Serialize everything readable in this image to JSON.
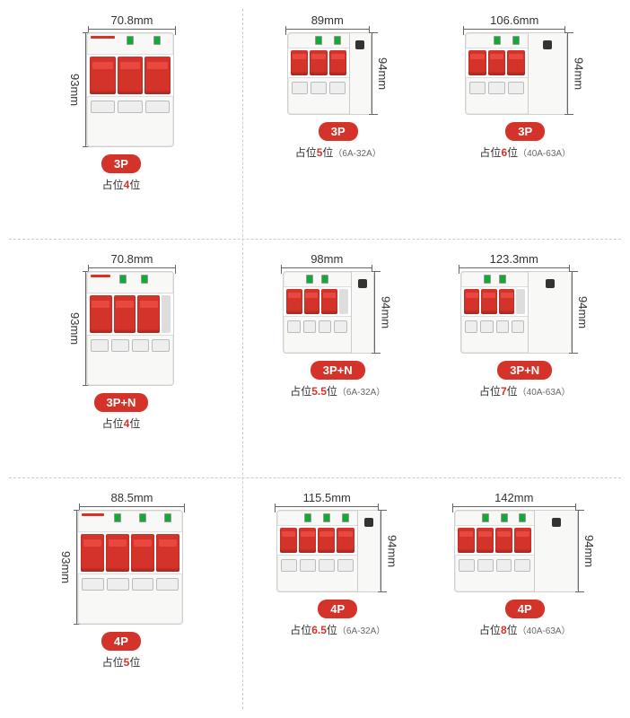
{
  "colors": {
    "accent": "#d4332a",
    "text": "#333333",
    "bg": "#ffffff",
    "breaker_body": "#f8f8f6",
    "switch": "#d4332a",
    "indicator": "#11aa33"
  },
  "rows": [
    {
      "left": {
        "width_mm": "70.8mm",
        "height_mm": "93mm",
        "breaker": {
          "poles": 3,
          "w": 98,
          "h": 128,
          "rcd_w": 0
        },
        "badge": "3P",
        "slots": "4",
        "slots_prefix": "占位",
        "slots_suffix": "位",
        "range": ""
      },
      "right": [
        {
          "width_mm": "89mm",
          "height_mm": "94mm",
          "breaker": {
            "poles": 3,
            "w": 70,
            "h": 92,
            "rcd_w": 24
          },
          "badge": "3P",
          "slots": "5",
          "slots_prefix": "占位",
          "slots_suffix": "位",
          "range": "（6A-32A）"
        },
        {
          "width_mm": "106.6mm",
          "height_mm": "94mm",
          "breaker": {
            "poles": 3,
            "w": 70,
            "h": 92,
            "rcd_w": 44
          },
          "badge": "3P",
          "slots": "6",
          "slots_prefix": "占位",
          "slots_suffix": "位",
          "range": "（40A-63A）"
        }
      ]
    },
    {
      "left": {
        "width_mm": "70.8mm",
        "height_mm": "93mm",
        "breaker": {
          "poles": 3,
          "w": 98,
          "h": 128,
          "rcd_w": 0,
          "neutral": true
        },
        "badge": "3P+N",
        "slots": "4",
        "slots_prefix": "占位",
        "slots_suffix": "位",
        "range": ""
      },
      "right": [
        {
          "width_mm": "98mm",
          "height_mm": "94mm",
          "breaker": {
            "poles": 3,
            "w": 76,
            "h": 92,
            "rcd_w": 26,
            "neutral": true
          },
          "badge": "3P+N",
          "slots": "5.5",
          "slots_prefix": "占位",
          "slots_suffix": "位",
          "range": "（6A-32A）"
        },
        {
          "width_mm": "123.3mm",
          "height_mm": "94mm",
          "breaker": {
            "poles": 3,
            "w": 76,
            "h": 92,
            "rcd_w": 48,
            "neutral": true
          },
          "badge": "3P+N",
          "slots": "7",
          "slots_prefix": "占位",
          "slots_suffix": "位",
          "range": "（40A-63A）"
        }
      ]
    },
    {
      "left": {
        "width_mm": "88.5mm",
        "height_mm": "93mm",
        "breaker": {
          "poles": 4,
          "w": 118,
          "h": 128,
          "rcd_w": 0
        },
        "badge": "4P",
        "slots": "5",
        "slots_prefix": "占位",
        "slots_suffix": "位",
        "range": ""
      },
      "right": [
        {
          "width_mm": "115.5mm",
          "height_mm": "94mm",
          "breaker": {
            "poles": 4,
            "w": 90,
            "h": 92,
            "rcd_w": 26
          },
          "badge": "4P",
          "slots": "6.5",
          "slots_prefix": "占位",
          "slots_suffix": "位",
          "range": "（6A-32A）"
        },
        {
          "width_mm": "142mm",
          "height_mm": "94mm",
          "breaker": {
            "poles": 4,
            "w": 90,
            "h": 92,
            "rcd_w": 48
          },
          "badge": "4P",
          "slots": "8",
          "slots_prefix": "占位",
          "slots_suffix": "位",
          "range": "（40A-63A）"
        }
      ]
    }
  ]
}
